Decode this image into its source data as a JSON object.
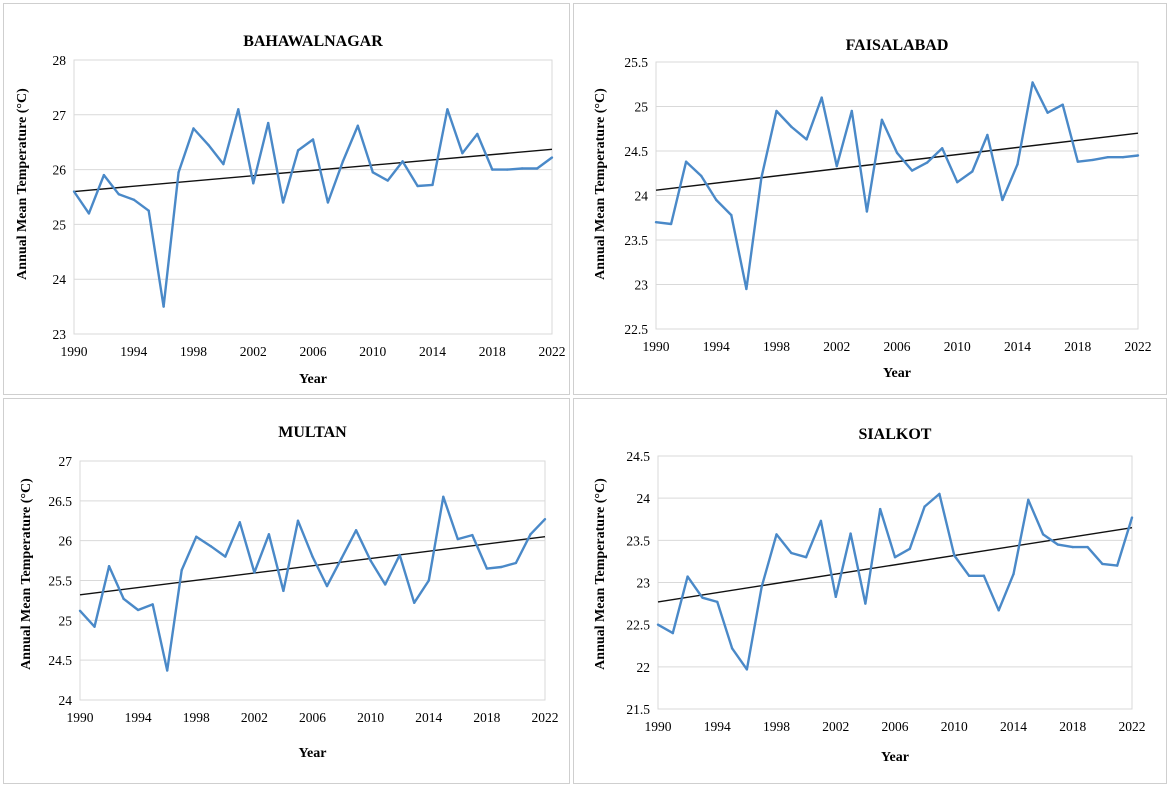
{
  "colors": {
    "series": "#4a89c8",
    "trendline": "#111111",
    "grid": "#d9d9d9"
  },
  "chart_data": [
    {
      "type": "line",
      "title": "BAHAWALNAGAR",
      "xlabel": "Year",
      "ylabel": "Annual Mean Temperature (°C)",
      "xlim": [
        1990,
        2022
      ],
      "ylim": [
        23,
        28
      ],
      "ystep": 1,
      "ydecimals": 0,
      "xticks": [
        1990,
        1994,
        1998,
        2002,
        2006,
        2010,
        2014,
        2018,
        2022
      ],
      "x": [
        1990,
        1991,
        1992,
        1993,
        1994,
        1995,
        1996,
        1997,
        1998,
        1999,
        2000,
        2001,
        2002,
        2003,
        2004,
        2005,
        2006,
        2007,
        2008,
        2009,
        2010,
        2011,
        2012,
        2013,
        2014,
        2015,
        2016,
        2017,
        2018,
        2019,
        2020,
        2021,
        2022
      ],
      "values": [
        25.6,
        25.2,
        25.9,
        25.55,
        25.45,
        25.25,
        23.5,
        25.95,
        26.75,
        26.45,
        26.1,
        27.1,
        25.75,
        26.85,
        25.4,
        26.35,
        26.55,
        25.4,
        26.15,
        26.8,
        25.95,
        25.8,
        26.15,
        25.7,
        25.72,
        27.1,
        26.3,
        26.65,
        26.0,
        26.0,
        26.02,
        26.02,
        26.22
      ],
      "trendline": {
        "start": 25.6,
        "end": 26.37
      }
    },
    {
      "type": "line",
      "title": "FAISALABAD",
      "xlabel": "Year",
      "ylabel": "Annual Mean Temperature (°C)",
      "xlim": [
        1990,
        2022
      ],
      "ylim": [
        22.5,
        25.5
      ],
      "ystep": 0.5,
      "ydecimals": 1,
      "xticks": [
        1990,
        1994,
        1998,
        2002,
        2006,
        2010,
        2014,
        2018,
        2022
      ],
      "x": [
        1990,
        1991,
        1992,
        1993,
        1994,
        1995,
        1996,
        1997,
        1998,
        1999,
        2000,
        2001,
        2002,
        2003,
        2004,
        2005,
        2006,
        2007,
        2008,
        2009,
        2010,
        2011,
        2012,
        2013,
        2014,
        2015,
        2016,
        2017,
        2018,
        2019,
        2020,
        2021,
        2022
      ],
      "values": [
        23.7,
        23.68,
        24.38,
        24.22,
        23.95,
        23.78,
        22.95,
        24.2,
        24.95,
        24.77,
        24.63,
        25.1,
        24.33,
        24.95,
        23.82,
        24.85,
        24.48,
        24.28,
        24.37,
        24.53,
        24.15,
        24.27,
        24.68,
        23.95,
        24.35,
        25.27,
        24.93,
        25.02,
        24.38,
        24.4,
        24.43,
        24.43,
        24.45
      ],
      "trendline": {
        "start": 24.06,
        "end": 24.7
      }
    },
    {
      "type": "line",
      "title": "MULTAN",
      "xlabel": "Year",
      "ylabel": "Annual Mean Temperature (°C)",
      "xlim": [
        1990,
        2022
      ],
      "ylim": [
        24,
        27
      ],
      "ystep": 0.5,
      "ydecimals": 1,
      "xticks": [
        1990,
        1994,
        1998,
        2002,
        2006,
        2010,
        2014,
        2018,
        2022
      ],
      "x": [
        1990,
        1991,
        1992,
        1993,
        1994,
        1995,
        1996,
        1997,
        1998,
        1999,
        2000,
        2001,
        2002,
        2003,
        2004,
        2005,
        2006,
        2007,
        2008,
        2009,
        2010,
        2011,
        2012,
        2013,
        2014,
        2015,
        2016,
        2017,
        2018,
        2019,
        2020,
        2021,
        2022
      ],
      "values": [
        25.12,
        24.92,
        25.68,
        25.27,
        25.13,
        25.2,
        24.37,
        25.63,
        26.05,
        25.93,
        25.8,
        26.23,
        25.6,
        26.08,
        25.37,
        26.25,
        25.8,
        25.43,
        25.78,
        26.13,
        25.75,
        25.45,
        25.82,
        25.22,
        25.5,
        26.55,
        26.02,
        26.07,
        25.65,
        25.67,
        25.72,
        26.08,
        26.27
      ],
      "trendline": {
        "start": 25.32,
        "end": 26.05
      }
    },
    {
      "type": "line",
      "title": "SIALKOT",
      "xlabel": "Year",
      "ylabel": "Annual Mean Temperature (°C)",
      "xlim": [
        1990,
        2022
      ],
      "ylim": [
        21.5,
        24.5
      ],
      "ystep": 0.5,
      "ydecimals": 1,
      "xticks": [
        1990,
        1994,
        1998,
        2002,
        2006,
        2010,
        2014,
        2018,
        2022
      ],
      "x": [
        1990,
        1991,
        1992,
        1993,
        1994,
        1995,
        1996,
        1997,
        1998,
        1999,
        2000,
        2001,
        2002,
        2003,
        2004,
        2005,
        2006,
        2007,
        2008,
        2009,
        2010,
        2011,
        2012,
        2013,
        2014,
        2015,
        2016,
        2017,
        2018,
        2019,
        2020,
        2021,
        2022
      ],
      "values": [
        22.5,
        22.4,
        23.07,
        22.82,
        22.77,
        22.22,
        21.97,
        22.95,
        23.57,
        23.35,
        23.3,
        23.73,
        22.83,
        23.58,
        22.75,
        23.87,
        23.3,
        23.4,
        23.9,
        24.05,
        23.32,
        23.08,
        23.08,
        22.67,
        23.1,
        23.98,
        23.57,
        23.45,
        23.42,
        23.42,
        23.22,
        23.2,
        23.77
      ],
      "trendline": {
        "start": 22.77,
        "end": 23.65
      }
    }
  ]
}
